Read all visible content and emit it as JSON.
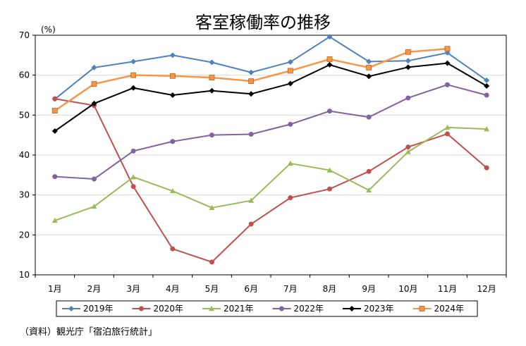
{
  "chart_data": {
    "type": "line",
    "title": "客室稼働率の推移",
    "ylabel": "(%)",
    "xlabel": "",
    "categories": [
      "1月",
      "2月",
      "3月",
      "4月",
      "5月",
      "6月",
      "7月",
      "8月",
      "9月",
      "10月",
      "11月",
      "12月"
    ],
    "ylim": [
      10,
      70
    ],
    "yticks": [
      10,
      20,
      30,
      40,
      50,
      60,
      70
    ],
    "grid": true,
    "legend_position": "bottom",
    "series": [
      {
        "name": "2019年",
        "color": "#4f81bd",
        "marker": "diamond",
        "values": [
          54.0,
          61.9,
          63.4,
          65.0,
          63.2,
          60.7,
          63.3,
          69.6,
          63.4,
          63.6,
          65.6,
          58.7
        ]
      },
      {
        "name": "2020年",
        "color": "#c0504d",
        "marker": "circle",
        "values": [
          54.1,
          52.4,
          32.1,
          16.5,
          13.2,
          22.7,
          29.3,
          31.5,
          35.9,
          42.0,
          45.3,
          36.8
        ]
      },
      {
        "name": "2021年",
        "color": "#9bbb59",
        "marker": "triangle",
        "values": [
          23.6,
          27.1,
          34.5,
          31.0,
          26.8,
          28.6,
          37.9,
          36.2,
          31.2,
          40.8,
          46.9,
          46.5
        ]
      },
      {
        "name": "2022年",
        "color": "#8064a2",
        "marker": "circle",
        "values": [
          34.6,
          34.0,
          41.0,
          43.4,
          45.0,
          45.2,
          47.7,
          51.0,
          49.5,
          54.3,
          57.6,
          55.0
        ]
      },
      {
        "name": "2023年",
        "color": "#000000",
        "marker": "diamond",
        "values": [
          46.0,
          52.9,
          56.8,
          55.0,
          56.1,
          55.3,
          57.9,
          62.6,
          59.7,
          62.0,
          63.0,
          57.3
        ]
      },
      {
        "name": "2024年",
        "color": "#f79646",
        "marker": "square",
        "values": [
          51.1,
          57.8,
          60.0,
          59.8,
          59.4,
          58.5,
          61.1,
          64.0,
          61.9,
          65.8,
          66.6,
          null
        ]
      }
    ]
  },
  "source_note": "（資料）観光庁「宿泊旅行統計」"
}
